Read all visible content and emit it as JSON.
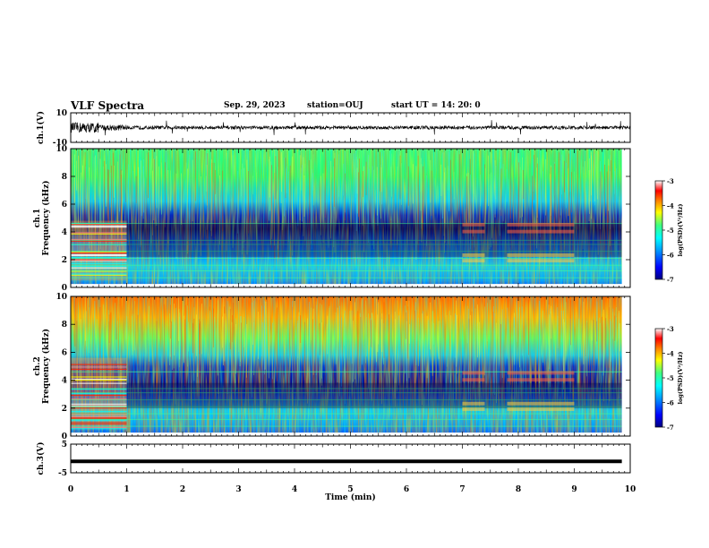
{
  "header": {
    "title": "VLF Spectra",
    "date": "Sep. 29, 2023",
    "station": "station=OUJ",
    "start": "start  UT =   14: 20: 0"
  },
  "colorbar": {
    "ticks": [
      -3,
      -4,
      -5,
      -6,
      -7
    ],
    "label": "log(PSD)(V²/Hz)",
    "colors": [
      "#000080",
      "#0000ff",
      "#00a0ff",
      "#00ffff",
      "#40ff80",
      "#ffff00",
      "#ff8000",
      "#ff0000",
      "#ffffff"
    ]
  },
  "chart_data": [
    {
      "type": "line",
      "id": "ch1",
      "ylabel": "ch.1(V)",
      "ylim": [
        -10,
        10
      ],
      "yticks": [
        "10",
        "-10"
      ],
      "xlim": [
        0,
        10
      ],
      "description_values": "waveform between about -3 and 3 V, larger amplitude before 0.5 min"
    },
    {
      "type": "heatmap",
      "id": "ch1-spec",
      "ylabel": "ch.1\nFrequency (kHz)",
      "ylim": [
        0,
        10
      ],
      "yticks": [
        "10",
        "8",
        "6",
        "4",
        "2",
        "0"
      ],
      "xlim": [
        0,
        10
      ],
      "zlim": [
        -7,
        -3
      ]
    },
    {
      "type": "heatmap",
      "id": "ch2-spec",
      "ylabel": "ch.2\nFrequency (kHz)",
      "ylim": [
        0,
        10
      ],
      "yticks": [
        "10",
        "8",
        "6",
        "4",
        "2",
        "0"
      ],
      "xlim": [
        0,
        10
      ],
      "zlim": [
        -7,
        -3
      ]
    },
    {
      "type": "line",
      "id": "ch3",
      "ylabel": "ch.3(V)",
      "ylim": [
        -5,
        5
      ],
      "yticks": [
        "5",
        "-5"
      ],
      "xlim": [
        0,
        10
      ],
      "values_constant": -1
    }
  ],
  "xaxis": {
    "label": "Time  (min)",
    "ticks": [
      "0",
      "1",
      "2",
      "3",
      "4",
      "5",
      "6",
      "7",
      "8",
      "9",
      "10"
    ]
  }
}
